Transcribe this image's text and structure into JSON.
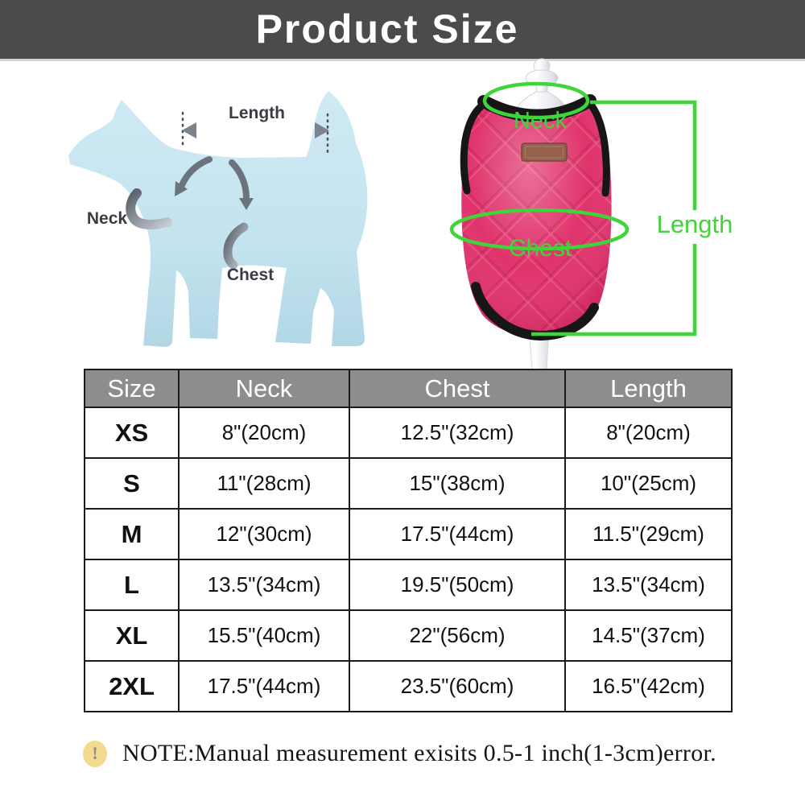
{
  "header": {
    "title": "Product Size"
  },
  "dog_diagram": {
    "length_label": "Length",
    "neck_label": "Neck",
    "chest_label": "Chest"
  },
  "vest_diagram": {
    "neck_label": "Neck",
    "chest_label": "Chest",
    "length_label": "Length"
  },
  "size_table": {
    "headers": [
      "Size",
      "Neck",
      "Chest",
      "Length"
    ],
    "rows": [
      {
        "size": "XS",
        "neck": "8\"(20cm)",
        "chest": "12.5\"(32cm)",
        "length": "8\"(20cm)"
      },
      {
        "size": "S",
        "neck": "11\"(28cm)",
        "chest": "15\"(38cm)",
        "length": "10\"(25cm)"
      },
      {
        "size": "M",
        "neck": "12\"(30cm)",
        "chest": "17.5\"(44cm)",
        "length": "11.5\"(29cm)"
      },
      {
        "size": "L",
        "neck": "13.5\"(34cm)",
        "chest": "19.5\"(50cm)",
        "length": "13.5\"(34cm)"
      },
      {
        "size": "XL",
        "neck": "15.5\"(40cm)",
        "chest": "22\"(56cm)",
        "length": "14.5\"(37cm)"
      },
      {
        "size": "2XL",
        "neck": "17.5\"(44cm)",
        "chest": "23.5\"(60cm)",
        "length": "16.5\"(42cm)"
      }
    ]
  },
  "note": {
    "icon_glyph": "!",
    "text": "NOTE:Manual measurement exisits 0.5-1 inch(1-3cm)error."
  },
  "colors": {
    "header_bg": "#4b4b4b",
    "table_header_bg": "#8d8d8d",
    "annotation_green": "#3ed43a",
    "vest_pink": "#e0336b",
    "dog_blue": "#c7e5f0",
    "note_icon_bg": "#f4da8e"
  }
}
